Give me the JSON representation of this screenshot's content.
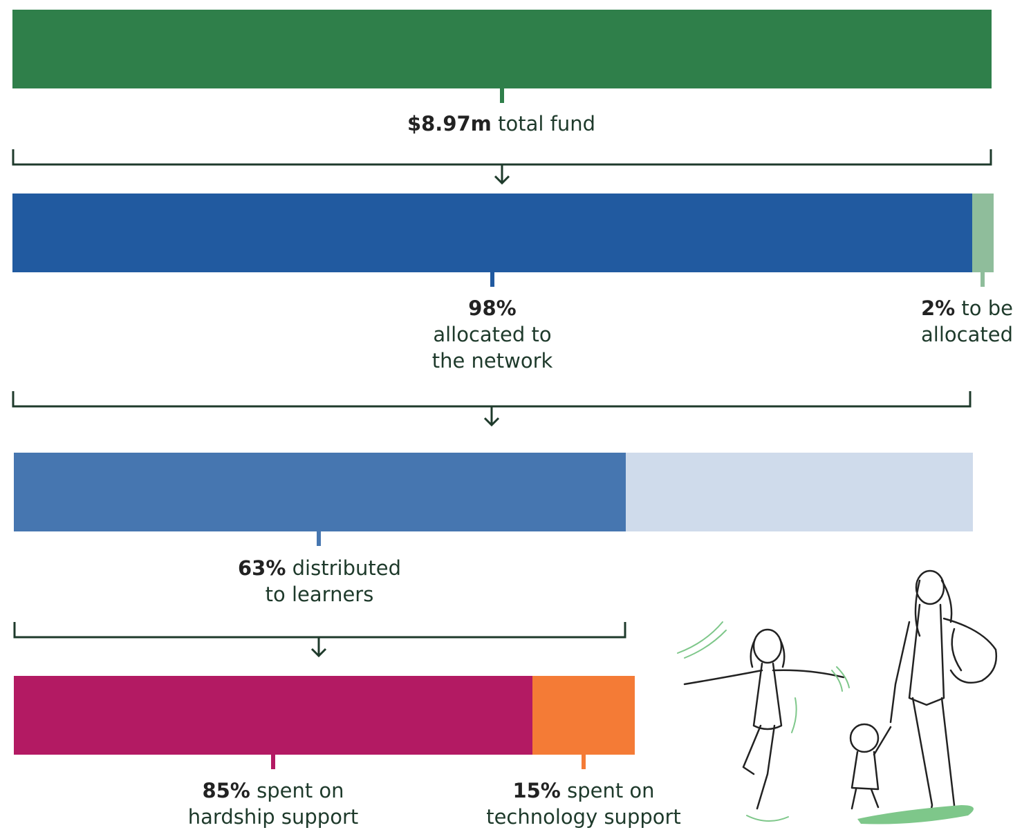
{
  "colors": {
    "total": "#2f7f4a",
    "network": "#215aa0",
    "unallocated": "#8fbd9b",
    "learners": "#4676b0",
    "not_distributed": "#cfdbeb",
    "hardship": "#b31a63",
    "technology": "#f47b36",
    "connector": "#1e3a2b",
    "illustration_accent": "#7ec78a"
  },
  "labels": {
    "total": {
      "value": "$8.97m",
      "text": " total fund"
    },
    "network": {
      "value": "98%",
      "line1": "allocated to",
      "line2": "the network"
    },
    "unallocated": {
      "value": "2%",
      "text": " to be",
      "line2": "allocated"
    },
    "learners": {
      "value": "63%",
      "text": " distributed",
      "line2": "to learners"
    },
    "hardship": {
      "value": "85%",
      "text": " spent on",
      "line2": "hardship support"
    },
    "technology": {
      "value": "15%",
      "text": " spent on",
      "line2": "technology support"
    }
  },
  "chart_data": {
    "type": "bar",
    "total_fund_musd": 8.97,
    "levels": [
      {
        "segments": [
          {
            "key": "total",
            "share": 1.0
          }
        ]
      },
      {
        "segments": [
          {
            "key": "network",
            "percent": 98
          },
          {
            "key": "unallocated",
            "percent": 2
          }
        ]
      },
      {
        "segments": [
          {
            "key": "learners",
            "percent": 63
          },
          {
            "key": "not_distributed",
            "percent": 37
          }
        ]
      },
      {
        "segments": [
          {
            "key": "hardship",
            "percent": 85
          },
          {
            "key": "technology",
            "percent": 15
          }
        ]
      }
    ]
  },
  "illustration": {
    "icon": "family-walking-illustration"
  }
}
